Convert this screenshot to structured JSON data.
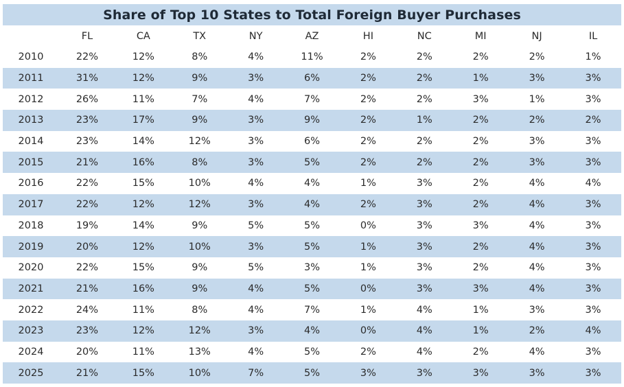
{
  "chart_data": {
    "type": "table",
    "title": "Share of Top 10 States to Total Foreign Buyer Purchases",
    "columns": [
      "FL",
      "CA",
      "TX",
      "NY",
      "AZ",
      "HI",
      "NC",
      "MI",
      "NJ",
      "IL"
    ],
    "rows": [
      {
        "year": "2010",
        "values": [
          "22%",
          "12%",
          "8%",
          "4%",
          "11%",
          "2%",
          "2%",
          "2%",
          "2%",
          "1%"
        ]
      },
      {
        "year": "2011",
        "values": [
          "31%",
          "12%",
          "9%",
          "3%",
          "6%",
          "2%",
          "2%",
          "1%",
          "3%",
          "3%"
        ]
      },
      {
        "year": "2012",
        "values": [
          "26%",
          "11%",
          "7%",
          "4%",
          "7%",
          "2%",
          "2%",
          "3%",
          "1%",
          "3%"
        ]
      },
      {
        "year": "2013",
        "values": [
          "23%",
          "17%",
          "9%",
          "3%",
          "9%",
          "2%",
          "1%",
          "2%",
          "2%",
          "2%"
        ]
      },
      {
        "year": "2014",
        "values": [
          "23%",
          "14%",
          "12%",
          "3%",
          "6%",
          "2%",
          "2%",
          "2%",
          "3%",
          "3%"
        ]
      },
      {
        "year": "2015",
        "values": [
          "21%",
          "16%",
          "8%",
          "3%",
          "5%",
          "2%",
          "2%",
          "2%",
          "3%",
          "3%"
        ]
      },
      {
        "year": "2016",
        "values": [
          "22%",
          "15%",
          "10%",
          "4%",
          "4%",
          "1%",
          "3%",
          "2%",
          "4%",
          "4%"
        ]
      },
      {
        "year": "2017",
        "values": [
          "22%",
          "12%",
          "12%",
          "3%",
          "4%",
          "2%",
          "3%",
          "2%",
          "4%",
          "3%"
        ]
      },
      {
        "year": "2018",
        "values": [
          "19%",
          "14%",
          "9%",
          "5%",
          "5%",
          "0%",
          "3%",
          "3%",
          "4%",
          "3%"
        ]
      },
      {
        "year": "2019",
        "values": [
          "20%",
          "12%",
          "10%",
          "3%",
          "5%",
          "1%",
          "3%",
          "2%",
          "4%",
          "3%"
        ]
      },
      {
        "year": "2020",
        "values": [
          "22%",
          "15%",
          "9%",
          "5%",
          "3%",
          "1%",
          "3%",
          "2%",
          "4%",
          "3%"
        ]
      },
      {
        "year": "2021",
        "values": [
          "21%",
          "16%",
          "9%",
          "4%",
          "5%",
          "0%",
          "3%",
          "3%",
          "4%",
          "3%"
        ]
      },
      {
        "year": "2022",
        "values": [
          "24%",
          "11%",
          "8%",
          "4%",
          "7%",
          "1%",
          "4%",
          "1%",
          "3%",
          "3%"
        ]
      },
      {
        "year": "2023",
        "values": [
          "23%",
          "12%",
          "12%",
          "3%",
          "4%",
          "0%",
          "4%",
          "1%",
          "2%",
          "4%"
        ]
      },
      {
        "year": "2024",
        "values": [
          "20%",
          "11%",
          "13%",
          "4%",
          "5%",
          "2%",
          "4%",
          "2%",
          "4%",
          "3%"
        ]
      },
      {
        "year": "2025",
        "values": [
          "21%",
          "15%",
          "10%",
          "7%",
          "5%",
          "3%",
          "3%",
          "3%",
          "3%",
          "3%"
        ]
      }
    ],
    "shaded_rows": "odd-index",
    "colors": {
      "band": "#c5d9ec",
      "text": "#2a2a2a",
      "title_text": "#1f2a36"
    }
  }
}
